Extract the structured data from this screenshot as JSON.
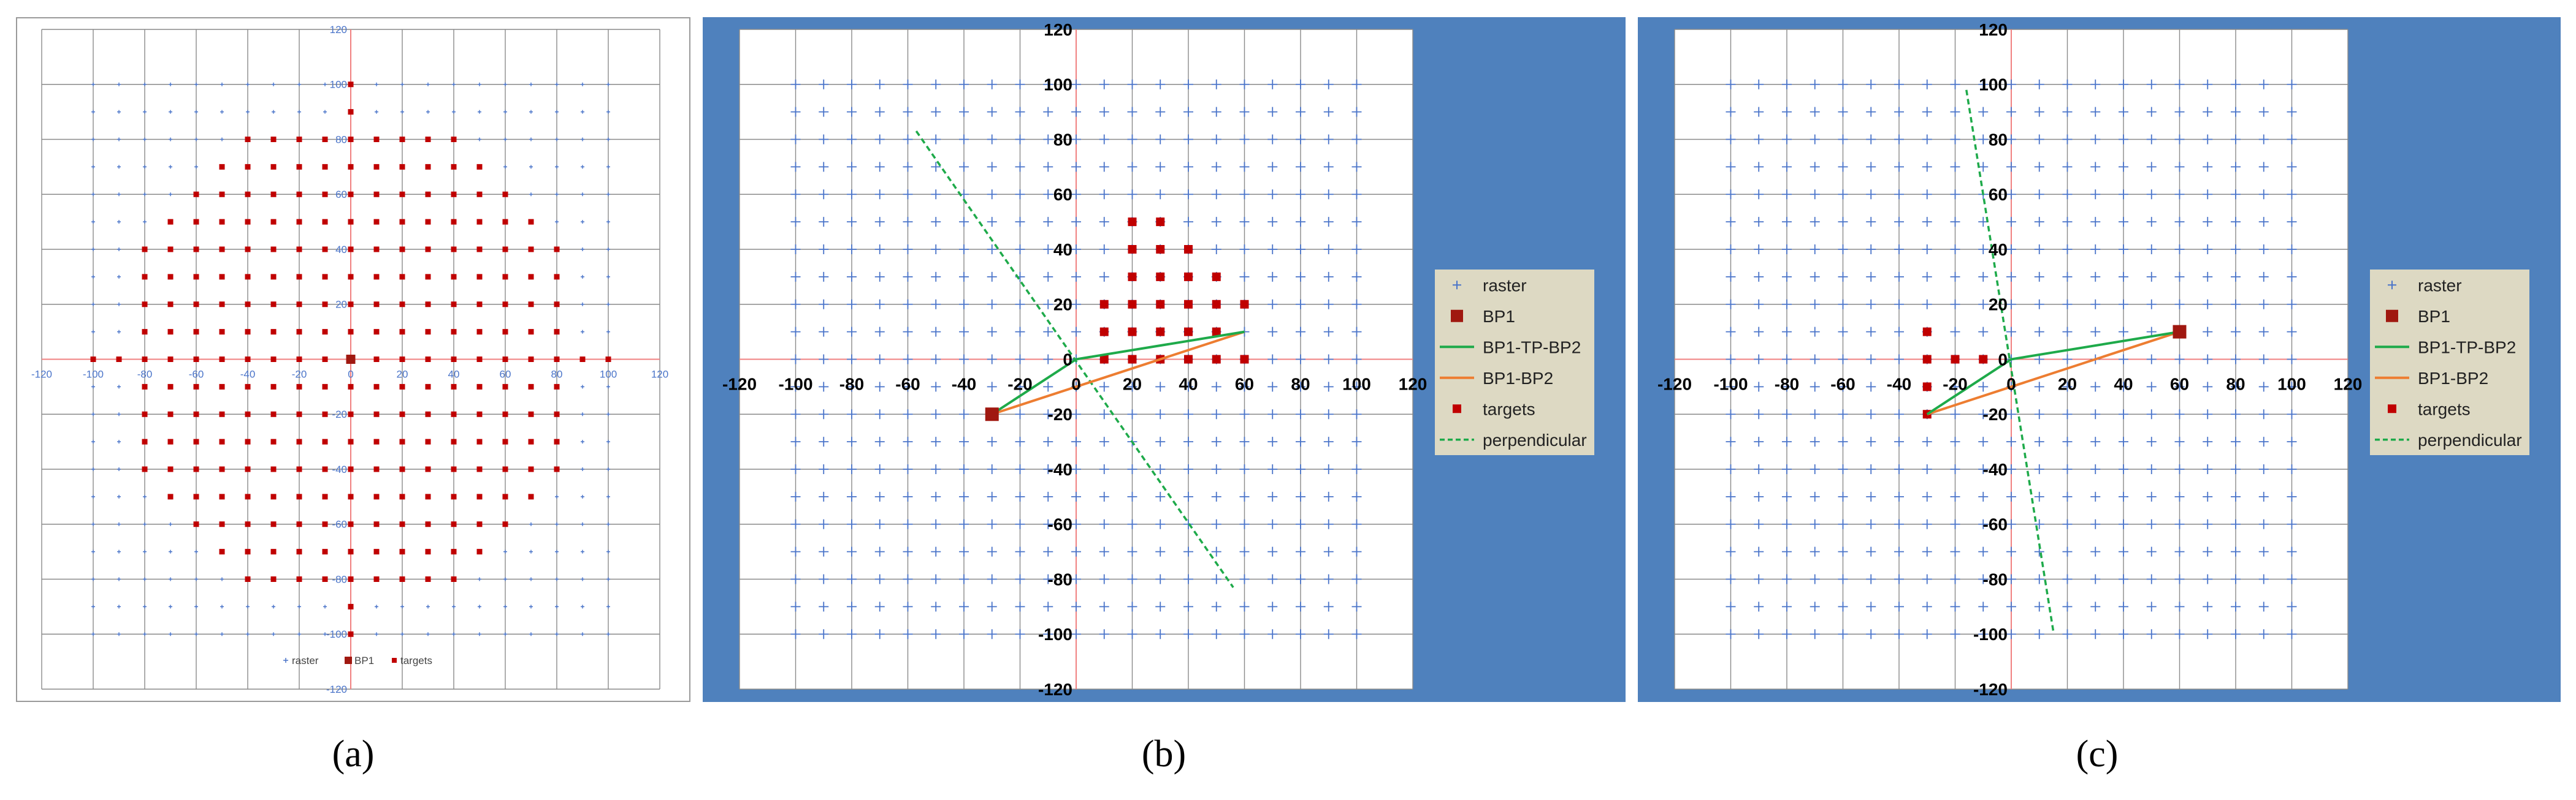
{
  "captions": {
    "a": "(a)",
    "b": "(b)",
    "c": "(c)"
  },
  "colors": {
    "raster": "#4a74c9",
    "bp1": "#a01810",
    "targets": "#c00000",
    "bp1_tp_bp2": "#1eaa4a",
    "bp1_bp2": "#ed7d31",
    "perpendicular": "#1eaa4a",
    "axis_red": "#f08080",
    "grid": "#8a8a8a",
    "panel_blue": "#4f81bd",
    "legend_bg": "#ddd9c3"
  },
  "chart_data": [
    {
      "panel": "a",
      "type": "scatter",
      "xlim": [
        -120,
        120
      ],
      "ylim": [
        -120,
        120
      ],
      "x_ticks": [
        -120,
        -100,
        -80,
        -60,
        -40,
        -20,
        0,
        20,
        40,
        60,
        80,
        100,
        120
      ],
      "y_ticks": [
        -120,
        -100,
        -80,
        -60,
        -40,
        -20,
        0,
        20,
        40,
        60,
        80,
        100,
        120
      ],
      "grid": true,
      "legend_position": "bottom",
      "raster": {
        "step": 10,
        "range": [
          -100,
          100
        ]
      },
      "bp1": [
        0,
        0
      ],
      "targets": {
        "rule": "x,y multiples of 10 with x^2+y^2 <= 90^2 (full circle)"
      },
      "extra_targets": [
        [
          0,
          100
        ],
        [
          0,
          -100
        ],
        [
          -100,
          0
        ],
        [
          100,
          0
        ]
      ],
      "legend": [
        "raster",
        "BP1",
        "targets"
      ]
    },
    {
      "panel": "b",
      "type": "scatter",
      "xlim": [
        -120,
        120
      ],
      "ylim": [
        -120,
        120
      ],
      "x_ticks": [
        -120,
        -100,
        -80,
        -60,
        -40,
        -20,
        0,
        20,
        40,
        60,
        80,
        100,
        120
      ],
      "y_ticks": [
        -120,
        -100,
        -80,
        -60,
        -40,
        -20,
        0,
        20,
        40,
        60,
        80,
        100,
        120
      ],
      "grid": true,
      "legend_position": "right",
      "raster": {
        "step": 10,
        "range": [
          -100,
          100
        ]
      },
      "bp1": [
        -30,
        -20
      ],
      "bp1_tp_bp2": [
        [
          -30,
          -20
        ],
        [
          0,
          0
        ],
        [
          60,
          10
        ]
      ],
      "bp1_bp2": [
        [
          -30,
          -20
        ],
        [
          60,
          10
        ]
      ],
      "perpendicular": [
        [
          -57,
          83
        ],
        [
          56,
          -83
        ]
      ],
      "targets": [
        [
          20,
          50
        ],
        [
          30,
          50
        ],
        [
          20,
          40
        ],
        [
          30,
          40
        ],
        [
          40,
          40
        ],
        [
          20,
          30
        ],
        [
          30,
          30
        ],
        [
          40,
          30
        ],
        [
          50,
          30
        ],
        [
          10,
          20
        ],
        [
          20,
          20
        ],
        [
          30,
          20
        ],
        [
          40,
          20
        ],
        [
          50,
          20
        ],
        [
          60,
          20
        ],
        [
          10,
          10
        ],
        [
          20,
          10
        ],
        [
          30,
          10
        ],
        [
          40,
          10
        ],
        [
          50,
          10
        ],
        [
          10,
          0
        ],
        [
          20,
          0
        ],
        [
          30,
          0
        ],
        [
          40,
          0
        ],
        [
          50,
          0
        ],
        [
          60,
          0
        ]
      ],
      "legend": [
        "raster",
        "BP1",
        "BP1-TP-BP2",
        "BP1-BP2",
        "targets",
        "perpendicular"
      ]
    },
    {
      "panel": "c",
      "type": "scatter",
      "xlim": [
        -120,
        120
      ],
      "ylim": [
        -120,
        120
      ],
      "x_ticks": [
        -120,
        -100,
        -80,
        -60,
        -40,
        -20,
        0,
        20,
        40,
        60,
        80,
        100,
        120
      ],
      "y_ticks": [
        -120,
        -100,
        -80,
        -60,
        -40,
        -20,
        0,
        20,
        40,
        60,
        80,
        100,
        120
      ],
      "grid": true,
      "legend_position": "right",
      "raster": {
        "step": 10,
        "range": [
          -100,
          100
        ]
      },
      "bp1": [
        60,
        10
      ],
      "bp1_tp_bp2": [
        [
          60,
          10
        ],
        [
          0,
          0
        ],
        [
          -30,
          -20
        ]
      ],
      "bp1_bp2": [
        [
          60,
          10
        ],
        [
          -30,
          -20
        ]
      ],
      "perpendicular": [
        [
          -16,
          98
        ],
        [
          15,
          -99
        ]
      ],
      "targets": [
        [
          -30,
          10
        ],
        [
          -30,
          0
        ],
        [
          -20,
          0
        ],
        [
          -10,
          0
        ],
        [
          -30,
          -10
        ],
        [
          -30,
          -20
        ]
      ],
      "legend": [
        "raster",
        "BP1",
        "BP1-TP-BP2",
        "BP1-BP2",
        "targets",
        "perpendicular"
      ]
    }
  ]
}
